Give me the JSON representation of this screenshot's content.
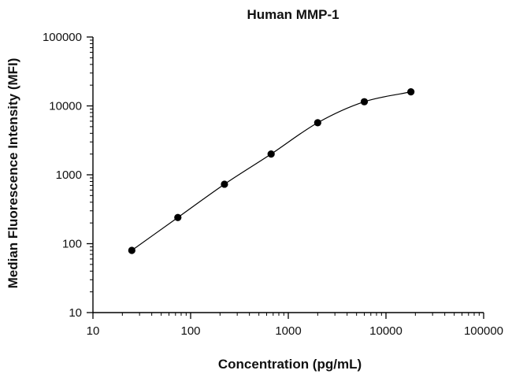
{
  "chart_data": {
    "type": "scatter",
    "title": "Human MMP-1",
    "xlabel": "Concentration (pg/mL)",
    "ylabel": "Median Fluorescence Intensity (MFI)",
    "x_scale": "log",
    "y_scale": "log",
    "xlim": [
      10,
      100000
    ],
    "ylim": [
      10,
      100000
    ],
    "x_ticks": [
      10,
      100,
      1000,
      10000,
      100000
    ],
    "y_ticks": [
      10,
      100,
      1000,
      10000,
      100000
    ],
    "x_tick_labels": [
      "10",
      "100",
      "1000",
      "10000",
      "100000"
    ],
    "y_tick_labels": [
      "10",
      "100",
      "1000",
      "10000",
      "100000"
    ],
    "grid": false,
    "fitted_curve": true,
    "series": [
      {
        "x": [
          25,
          74,
          222,
          667,
          2000,
          6000,
          18000
        ],
        "y": [
          80,
          240,
          730,
          2000,
          5700,
          11500,
          16000
        ]
      }
    ],
    "colors": {
      "marker": "#000000",
      "curve": "#000000",
      "axis": "#000000"
    }
  }
}
